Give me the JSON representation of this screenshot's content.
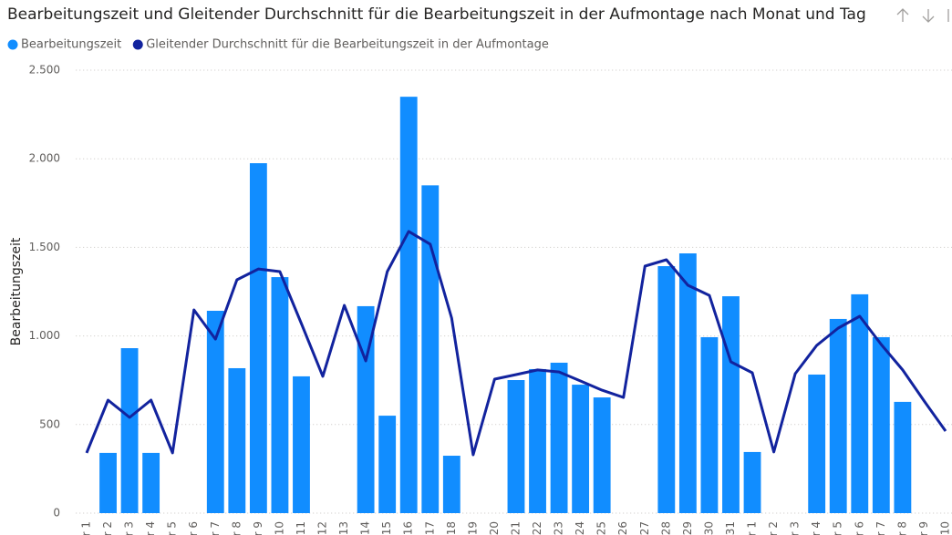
{
  "chart_data": {
    "type": "bar_line",
    "title": "Bearbeitungszeit und Gleitender Durchschnitt für die Bearbeitungszeit in der Aufmontage nach Monat und Tag",
    "y_label": "Bearbeitungszeit",
    "categories": [
      "r 1",
      "r 2",
      "r 3",
      "r 4",
      "r 5",
      "r 6",
      "r 7",
      "r 8",
      "r 9",
      "10",
      "11",
      "12",
      "13",
      "14",
      "15",
      "16",
      "17",
      "18",
      "19",
      "20",
      "21",
      "22",
      "23",
      "24",
      "25",
      "26",
      "27",
      "28",
      "29",
      "30",
      "31",
      "r 1",
      "r 2",
      "r 3",
      "r 4",
      "r 5",
      "r 6",
      "r 7",
      "r 8",
      "r 9",
      "10"
    ],
    "series": [
      {
        "name": "Bearbeitungszeit",
        "color": "#118dff",
        "kind": "bar",
        "values": [
          null,
          340,
          931,
          340,
          null,
          null,
          1142,
          818,
          1975,
          1332,
          772,
          null,
          null,
          1168,
          550,
          2350,
          1850,
          324,
          null,
          null,
          751,
          813,
          849,
          725,
          653,
          null,
          null,
          1394,
          1466,
          993,
          1224,
          345,
          null,
          null,
          782,
          1096,
          1235,
          993,
          628,
          null,
          null
        ]
      },
      {
        "name": "Gleitender Durchschnitt für die Bearbeitungszeit in der Aufmontage",
        "color": "#12239e",
        "kind": "line",
        "values": [
          340,
          638,
          540,
          638,
          340,
          1147,
          982,
          1317,
          1378,
          1363,
          1070,
          772,
          1173,
          859,
          1363,
          1590,
          1518,
          1101,
          329,
          756,
          782,
          808,
          797,
          746,
          694,
          653,
          1394,
          1430,
          1286,
          1229,
          854,
          792,
          345,
          787,
          947,
          1044,
          1111,
          952,
          808,
          633,
          463
        ]
      }
    ],
    "ylim": [
      0,
      2500
    ],
    "yticks": [
      0,
      500,
      {
        "value": 1000,
        "label": "1.000"
      },
      {
        "value": 1500,
        "label": "1.500"
      },
      {
        "value": 2000,
        "label": "2.000"
      },
      {
        "value": 2500,
        "label": "2.500"
      }
    ],
    "grid": true
  }
}
